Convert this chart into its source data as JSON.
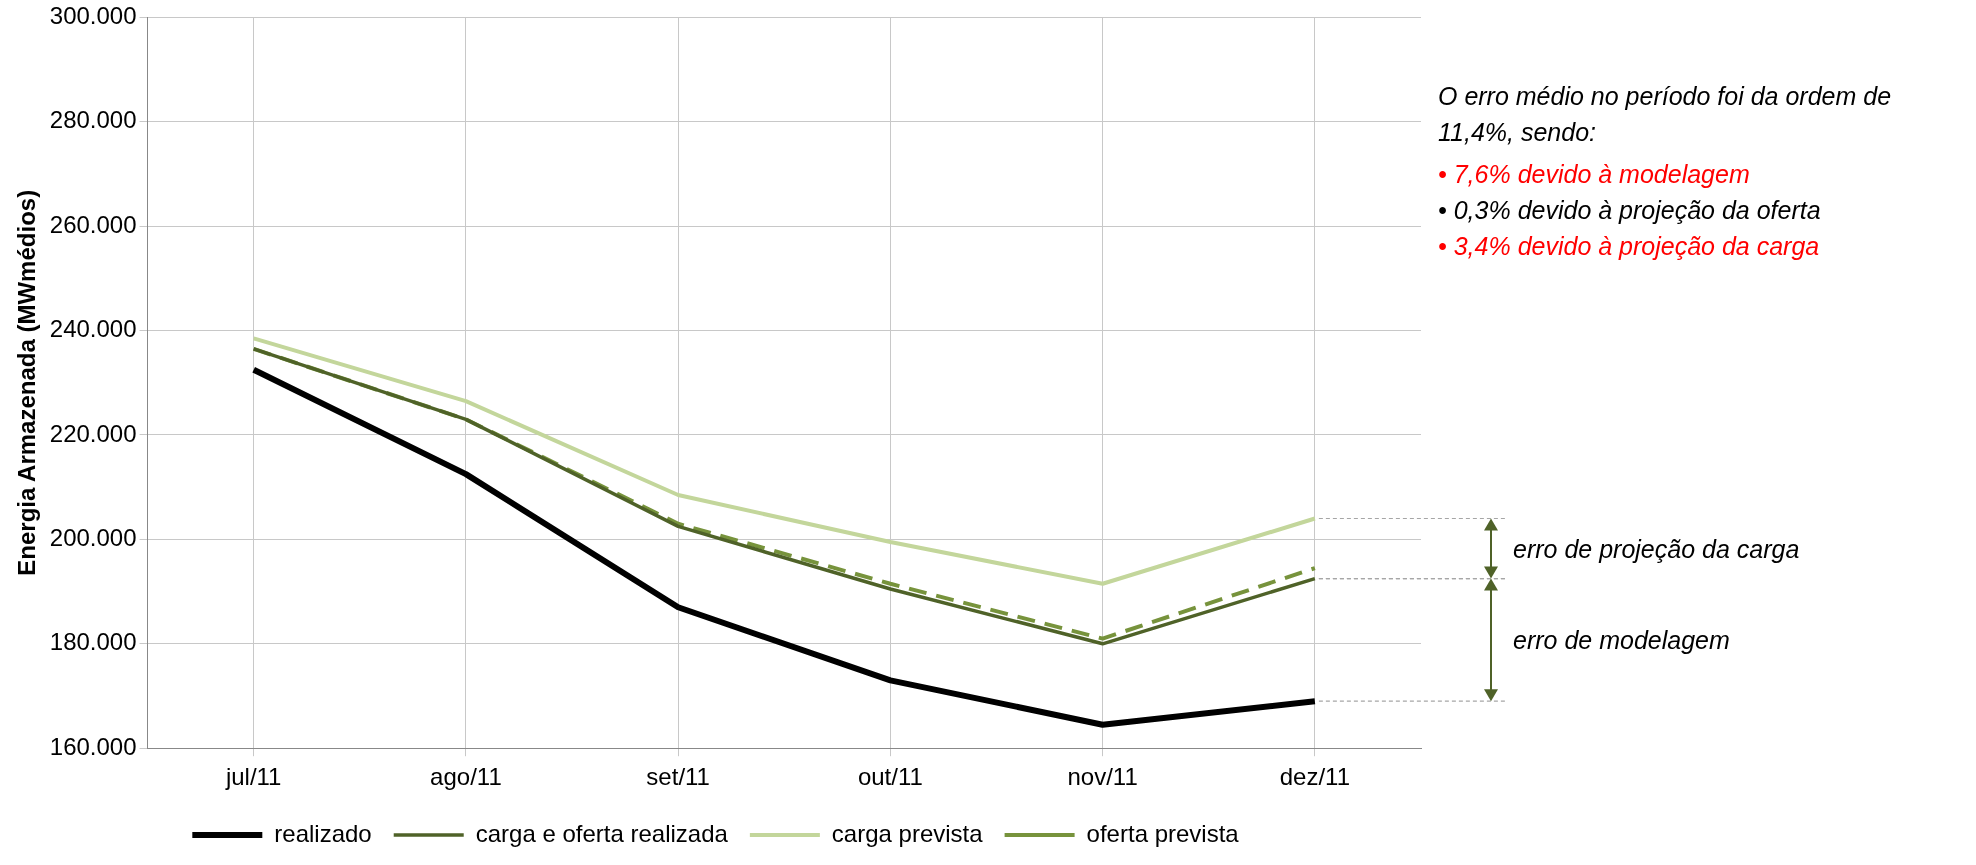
{
  "chart_data": {
    "type": "line",
    "ylabel": "Energia Armazenada (MWmédios)",
    "categories": [
      "jul/11",
      "ago/11",
      "set/11",
      "out/11",
      "nov/11",
      "dez/11"
    ],
    "series": [
      {
        "name": "realizado",
        "color": "#000000",
        "values": [
          232500,
          212500,
          187000,
          173000,
          164500,
          169000
        ]
      },
      {
        "name": "carga e oferta realizada",
        "color": "#4f6228",
        "values": [
          236500,
          223000,
          202500,
          190500,
          180000,
          192500
        ]
      },
      {
        "name": "carga prevista",
        "color": "#c3d69b",
        "values": [
          238500,
          226500,
          208500,
          199500,
          191500,
          204000
        ]
      },
      {
        "name": "oferta prevista",
        "color": "#77933c",
        "line_style": "dashed",
        "values": [
          236500,
          223000,
          203000,
          191500,
          181000,
          194500
        ]
      }
    ],
    "ylim": [
      160000,
      300000
    ],
    "yticks": [
      {
        "value": 160000,
        "label": "160.000"
      },
      {
        "value": 180000,
        "label": "180.000"
      },
      {
        "value": 200000,
        "label": "200.000"
      },
      {
        "value": 220000,
        "label": "220.000"
      },
      {
        "value": 240000,
        "label": "240.000"
      },
      {
        "value": 260000,
        "label": "260.000"
      },
      {
        "value": 280000,
        "label": "280.000"
      },
      {
        "value": 300000,
        "label": "300.000"
      }
    ],
    "grid": true,
    "legend": "bottom",
    "marker": "none",
    "line_style": "solid",
    "annotations": [
      "O erro médio no período foi da ordem de 11,4%, sendo:",
      "• 7,6% devido à modelagem",
      "• 0,3% devido à projeção da oferta",
      "• 3,4% devido à projeção da carga",
      {
        "text": "erro de projeção da carga",
        "x": "dez/11",
        "y": 204000
      },
      "erro de modelagem"
    ]
  }
}
